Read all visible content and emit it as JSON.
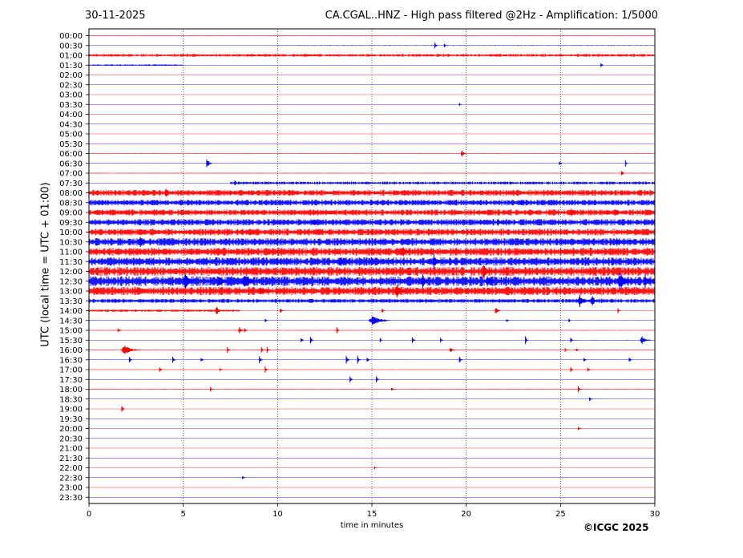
{
  "header": {
    "date": "30-11-2025",
    "title": "CA.CGAL..HNZ - High pass filtered @2Hz - Amplification: 1/5000"
  },
  "footer": {
    "copyright": "©ICGC 2025"
  },
  "colors": {
    "red_trace": "#ff0000",
    "blue_trace": "#0000ff",
    "axis": "#000000",
    "background": "#ffffff"
  },
  "chart_data": {
    "type": "line",
    "xlabel": "time in minutes",
    "ylabel": "UTC (local time = UTC + 01:00)",
    "xlim": [
      0,
      30
    ],
    "x_ticks": [
      "0",
      "5",
      "10",
      "15",
      "20",
      "25",
      "30"
    ],
    "vertical_gridlines": [
      5,
      10,
      15,
      20,
      25
    ],
    "grid": "dotted vertical lines at every 5 minutes",
    "row_labels": [
      "00:00",
      "00:30",
      "01:00",
      "01:30",
      "02:00",
      "02:30",
      "03:00",
      "03:30",
      "04:00",
      "04:30",
      "05:00",
      "05:30",
      "06:00",
      "06:30",
      "07:00",
      "07:30",
      "08:00",
      "08:30",
      "09:00",
      "09:30",
      "10:00",
      "10:30",
      "11:00",
      "11:30",
      "12:00",
      "12:30",
      "13:00",
      "13:30",
      "14:00",
      "14:30",
      "15:00",
      "15:30",
      "16:00",
      "16:30",
      "17:00",
      "17:30",
      "18:00",
      "18:30",
      "19:00",
      "19:30",
      "20:00",
      "20:30",
      "21:00",
      "21:30",
      "22:00",
      "22:30",
      "23:00",
      "23:30"
    ],
    "trace_colors": "alternating red / blue per row, starting with red at 00:00",
    "noise_level": [
      0.2,
      0.3,
      1.4,
      0.8,
      0.1,
      0.1,
      0.1,
      0.1,
      0.1,
      0.1,
      0.1,
      0.1,
      0.15,
      0.2,
      0.2,
      1.4,
      3.0,
      3.0,
      3.0,
      3.2,
      3.4,
      3.8,
      4.0,
      4.2,
      4.5,
      5.0,
      4.2,
      2.0,
      1.2,
      0.2,
      0.15,
      0.3,
      0.2,
      0.2,
      0.15,
      0.15,
      0.15,
      0.15,
      0.1,
      0.1,
      0.1,
      0.1,
      0.1,
      0.1,
      0.1,
      0.1,
      0.1,
      0.1
    ],
    "noise_start": [
      0,
      10,
      0,
      0,
      0,
      0,
      0,
      0,
      0,
      0,
      0,
      0,
      0,
      0,
      0,
      7.5,
      0,
      0,
      0,
      0,
      0,
      0,
      0,
      0,
      0,
      0,
      0,
      0,
      0,
      0,
      0,
      25,
      0,
      0,
      0,
      0,
      0,
      0,
      0,
      0,
      0,
      0,
      0,
      0,
      0,
      0,
      0,
      0
    ],
    "noise_end": [
      30,
      30,
      30,
      5,
      30,
      30,
      30,
      30,
      30,
      30,
      30,
      30,
      30,
      30,
      30,
      30,
      30,
      30,
      30,
      30,
      30,
      30,
      30,
      30,
      30,
      30,
      30,
      30,
      8,
      30,
      30,
      30,
      30,
      30,
      30,
      30,
      30,
      30,
      30,
      30,
      30,
      30,
      30,
      30,
      30,
      30,
      30,
      30
    ],
    "events": [
      {
        "row": 1,
        "t": 18.3,
        "amp": 4,
        "dur": 0.2
      },
      {
        "row": 1,
        "t": 18.8,
        "amp": 3,
        "dur": 0.2
      },
      {
        "row": 3,
        "t": 27.1,
        "amp": 3,
        "dur": 0.2
      },
      {
        "row": 7,
        "t": 19.6,
        "amp": 2,
        "dur": 0.2
      },
      {
        "row": 12,
        "t": 19.7,
        "amp": 5,
        "dur": 0.3
      },
      {
        "row": 13,
        "t": 6.2,
        "amp": 7,
        "dur": 0.3
      },
      {
        "row": 13,
        "t": 24.9,
        "amp": 3,
        "dur": 0.2
      },
      {
        "row": 13,
        "t": 28.4,
        "amp": 4,
        "dur": 0.2
      },
      {
        "row": 14,
        "t": 28.2,
        "amp": 4,
        "dur": 0.2
      },
      {
        "row": 15,
        "t": 7.7,
        "amp": 4,
        "dur": 0.2
      },
      {
        "row": 16,
        "t": 4.0,
        "amp": 7,
        "dur": 0.4
      },
      {
        "row": 17,
        "t": 22.8,
        "amp": 5,
        "dur": 0.4
      },
      {
        "row": 18,
        "t": 25.5,
        "amp": 6,
        "dur": 0.4
      },
      {
        "row": 18,
        "t": 27.8,
        "amp": 5,
        "dur": 0.4
      },
      {
        "row": 19,
        "t": 11.8,
        "amp": 6,
        "dur": 0.4
      },
      {
        "row": 19,
        "t": 21.6,
        "amp": 5,
        "dur": 0.4
      },
      {
        "row": 21,
        "t": 2.6,
        "amp": 8,
        "dur": 0.5
      },
      {
        "row": 21,
        "t": 27.9,
        "amp": 6,
        "dur": 0.4
      },
      {
        "row": 22,
        "t": 16.5,
        "amp": 8,
        "dur": 0.6
      },
      {
        "row": 23,
        "t": 13.2,
        "amp": 8,
        "dur": 0.5
      },
      {
        "row": 23,
        "t": 18.2,
        "amp": 10,
        "dur": 0.4
      },
      {
        "row": 24,
        "t": 20.8,
        "amp": 9,
        "dur": 0.6
      },
      {
        "row": 25,
        "t": 5.0,
        "amp": 11,
        "dur": 0.5
      },
      {
        "row": 25,
        "t": 6.8,
        "amp": 9,
        "dur": 0.5
      },
      {
        "row": 25,
        "t": 8.1,
        "amp": 11,
        "dur": 0.7
      },
      {
        "row": 25,
        "t": 17.6,
        "amp": 10,
        "dur": 0.4
      },
      {
        "row": 25,
        "t": 21.0,
        "amp": 8,
        "dur": 0.5
      },
      {
        "row": 25,
        "t": 28.0,
        "amp": 13,
        "dur": 0.7
      },
      {
        "row": 25,
        "t": 29.4,
        "amp": 11,
        "dur": 0.4
      },
      {
        "row": 26,
        "t": 16.2,
        "amp": 11,
        "dur": 0.6
      },
      {
        "row": 26,
        "t": 9.0,
        "amp": 6,
        "dur": 0.5
      },
      {
        "row": 27,
        "t": 25.9,
        "amp": 10,
        "dur": 0.5
      },
      {
        "row": 27,
        "t": 26.6,
        "amp": 8,
        "dur": 0.4
      },
      {
        "row": 28,
        "t": 6.7,
        "amp": 8,
        "dur": 0.3
      },
      {
        "row": 28,
        "t": 10.1,
        "amp": 4,
        "dur": 0.2
      },
      {
        "row": 28,
        "t": 15.5,
        "amp": 3,
        "dur": 0.2
      },
      {
        "row": 28,
        "t": 21.5,
        "amp": 6,
        "dur": 0.3
      },
      {
        "row": 28,
        "t": 28.0,
        "amp": 3,
        "dur": 0.2
      },
      {
        "row": 29,
        "t": 9.3,
        "amp": 3,
        "dur": 0.2
      },
      {
        "row": 29,
        "t": 14.8,
        "amp": 6,
        "dur": 1.2
      },
      {
        "row": 29,
        "t": 22.1,
        "amp": 3,
        "dur": 0.2
      },
      {
        "row": 29,
        "t": 25.4,
        "amp": 3,
        "dur": 0.2
      },
      {
        "row": 30,
        "t": 1.5,
        "amp": 4,
        "dur": 0.2
      },
      {
        "row": 30,
        "t": 7.9,
        "amp": 5,
        "dur": 0.3
      },
      {
        "row": 30,
        "t": 8.2,
        "amp": 4,
        "dur": 0.2
      },
      {
        "row": 30,
        "t": 13.1,
        "amp": 4,
        "dur": 0.2
      },
      {
        "row": 31,
        "t": 11.2,
        "amp": 4,
        "dur": 0.2
      },
      {
        "row": 31,
        "t": 11.7,
        "amp": 6,
        "dur": 0.2
      },
      {
        "row": 31,
        "t": 15.4,
        "amp": 3,
        "dur": 0.2
      },
      {
        "row": 31,
        "t": 17.1,
        "amp": 5,
        "dur": 0.2
      },
      {
        "row": 31,
        "t": 18.6,
        "amp": 4,
        "dur": 0.2
      },
      {
        "row": 31,
        "t": 23.1,
        "amp": 5,
        "dur": 0.2
      },
      {
        "row": 31,
        "t": 25.5,
        "amp": 3,
        "dur": 0.2
      },
      {
        "row": 31,
        "t": 29.2,
        "amp": 5,
        "dur": 0.6
      },
      {
        "row": 32,
        "t": 1.7,
        "amp": 6,
        "dur": 1.0
      },
      {
        "row": 32,
        "t": 7.3,
        "amp": 4,
        "dur": 0.2
      },
      {
        "row": 32,
        "t": 9.1,
        "amp": 4,
        "dur": 0.2
      },
      {
        "row": 32,
        "t": 9.4,
        "amp": 4,
        "dur": 0.2
      },
      {
        "row": 32,
        "t": 19.1,
        "amp": 4,
        "dur": 0.3
      },
      {
        "row": 32,
        "t": 25.2,
        "amp": 3,
        "dur": 0.2
      },
      {
        "row": 32,
        "t": 25.8,
        "amp": 3,
        "dur": 0.2
      },
      {
        "row": 33,
        "t": 2.1,
        "amp": 4,
        "dur": 0.2
      },
      {
        "row": 33,
        "t": 4.4,
        "amp": 4,
        "dur": 0.2
      },
      {
        "row": 33,
        "t": 5.9,
        "amp": 4,
        "dur": 0.2
      },
      {
        "row": 33,
        "t": 9.0,
        "amp": 5,
        "dur": 0.2
      },
      {
        "row": 33,
        "t": 13.6,
        "amp": 7,
        "dur": 0.2
      },
      {
        "row": 33,
        "t": 14.2,
        "amp": 6,
        "dur": 0.2
      },
      {
        "row": 33,
        "t": 14.7,
        "amp": 4,
        "dur": 0.2
      },
      {
        "row": 33,
        "t": 19.6,
        "amp": 5,
        "dur": 0.2
      },
      {
        "row": 33,
        "t": 26.2,
        "amp": 4,
        "dur": 0.2
      },
      {
        "row": 33,
        "t": 28.6,
        "amp": 4,
        "dur": 0.2
      },
      {
        "row": 34,
        "t": 3.7,
        "amp": 4,
        "dur": 0.2
      },
      {
        "row": 34,
        "t": 6.9,
        "amp": 3,
        "dur": 0.2
      },
      {
        "row": 34,
        "t": 9.3,
        "amp": 4,
        "dur": 0.2
      },
      {
        "row": 34,
        "t": 25.5,
        "amp": 3,
        "dur": 0.2
      },
      {
        "row": 34,
        "t": 26.4,
        "amp": 3,
        "dur": 0.2
      },
      {
        "row": 35,
        "t": 13.8,
        "amp": 4,
        "dur": 0.2
      },
      {
        "row": 35,
        "t": 15.2,
        "amp": 4,
        "dur": 0.2
      },
      {
        "row": 36,
        "t": 6.4,
        "amp": 4,
        "dur": 0.2
      },
      {
        "row": 36,
        "t": 16.0,
        "amp": 3,
        "dur": 0.2
      },
      {
        "row": 36,
        "t": 25.9,
        "amp": 4,
        "dur": 0.2
      },
      {
        "row": 37,
        "t": 26.5,
        "amp": 4,
        "dur": 0.2
      },
      {
        "row": 38,
        "t": 1.7,
        "amp": 4,
        "dur": 0.2
      },
      {
        "row": 40,
        "t": 25.9,
        "amp": 3,
        "dur": 0.2
      },
      {
        "row": 44,
        "t": 15.1,
        "amp": 2,
        "dur": 0.2
      },
      {
        "row": 45,
        "t": 8.1,
        "amp": 3,
        "dur": 0.2
      }
    ]
  }
}
